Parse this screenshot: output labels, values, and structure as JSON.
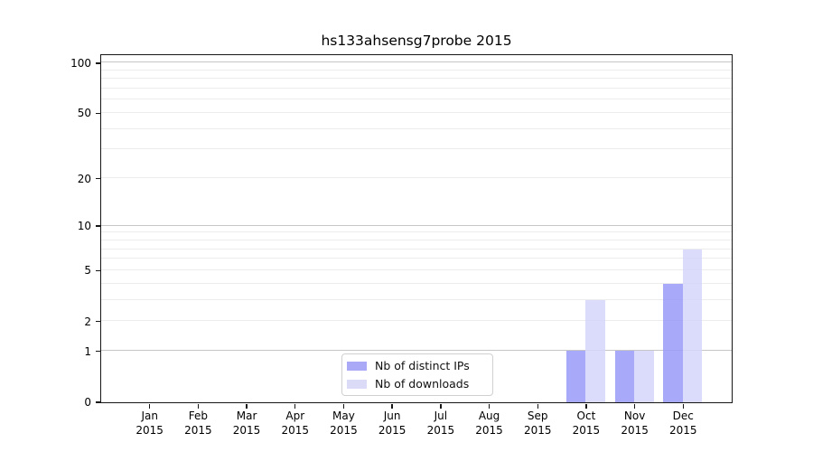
{
  "chart_data": {
    "type": "bar",
    "title": "hs133ahsensg7probe 2015",
    "categories": [
      "Jan 2015",
      "Feb 2015",
      "Mar 2015",
      "Apr 2015",
      "May 2015",
      "Jun 2015",
      "Jul 2015",
      "Aug 2015",
      "Sep 2015",
      "Oct 2015",
      "Nov 2015",
      "Dec 2015"
    ],
    "series": [
      {
        "name": "Nb of distinct IPs",
        "color": "#a9a9f7",
        "fill": "rgba(154,154,248,0.85)",
        "values": [
          0,
          0,
          0,
          0,
          0,
          0,
          0,
          0,
          0,
          1,
          1,
          4
        ]
      },
      {
        "name": "Nb of downloads",
        "color": "#dbdbf8",
        "fill": "rgba(213,213,250,0.85)",
        "values": [
          0,
          0,
          0,
          0,
          0,
          0,
          0,
          0,
          0,
          3,
          1,
          7
        ]
      }
    ],
    "xlabel": "",
    "ylabel": "",
    "y_scale": "log1p",
    "ylim": [
      0,
      111.7
    ],
    "y_ticks": [
      0,
      1,
      2,
      5,
      10,
      20,
      50,
      100
    ],
    "major_gridlines": [
      1,
      10,
      100
    ],
    "minor_gridlines": [
      2,
      3,
      4,
      5,
      6,
      7,
      8,
      9,
      20,
      30,
      40,
      50,
      60,
      70,
      80,
      90
    ],
    "legend": {
      "position": "inside lower center-left",
      "entries": [
        "Nb of distinct IPs",
        "Nb of downloads"
      ]
    },
    "colors": {
      "major_grid": "#c6c6c6",
      "minor_grid": "#ececec",
      "spine": "#161616",
      "text": "#000000",
      "background": "#ffffff"
    }
  }
}
